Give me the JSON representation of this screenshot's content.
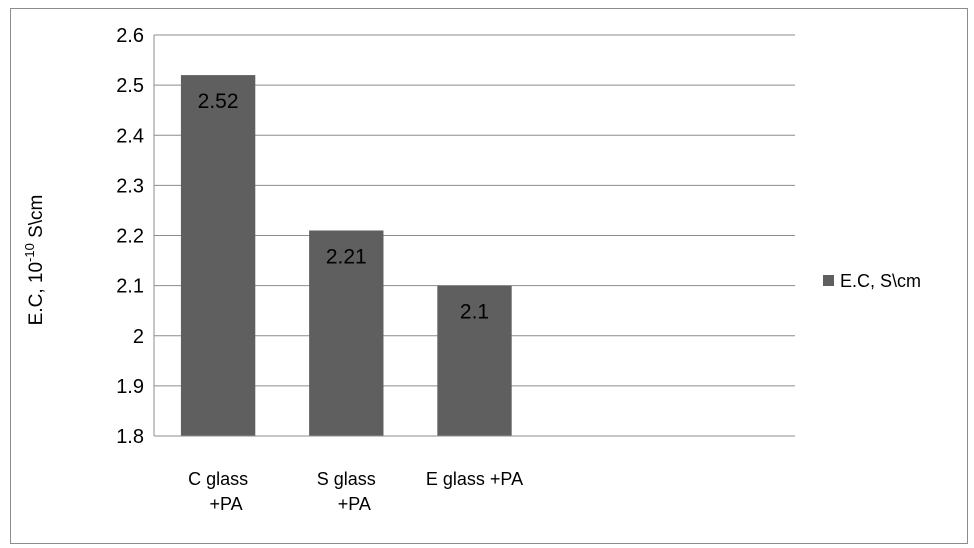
{
  "chart_data": {
    "type": "bar",
    "categories": [
      "C glass +PA",
      "S glass +PA",
      "E glass +PA"
    ],
    "category_lines": [
      [
        "C glass",
        "+PA"
      ],
      [
        "S glass",
        "+PA"
      ],
      [
        "E glass +PA"
      ]
    ],
    "extra_category_slots": 2,
    "series": [
      {
        "name": "E.C, S\\cm",
        "values": [
          2.52,
          2.21,
          2.1
        ],
        "color": "#5f5f5f"
      }
    ],
    "data_labels": [
      "2.52",
      "2.21",
      "2.1"
    ],
    "ylabel_main": "E.C,  10",
    "ylabel_sup": "-10",
    "ylabel_tail": " S\\cm",
    "ylim": [
      1.8,
      2.6
    ],
    "yticks": [
      "1.8",
      "1.9",
      "2",
      "2.1",
      "2.2",
      "2.3",
      "2.4",
      "2.5",
      "2.6"
    ],
    "grid": true,
    "legend_position": "right"
  }
}
